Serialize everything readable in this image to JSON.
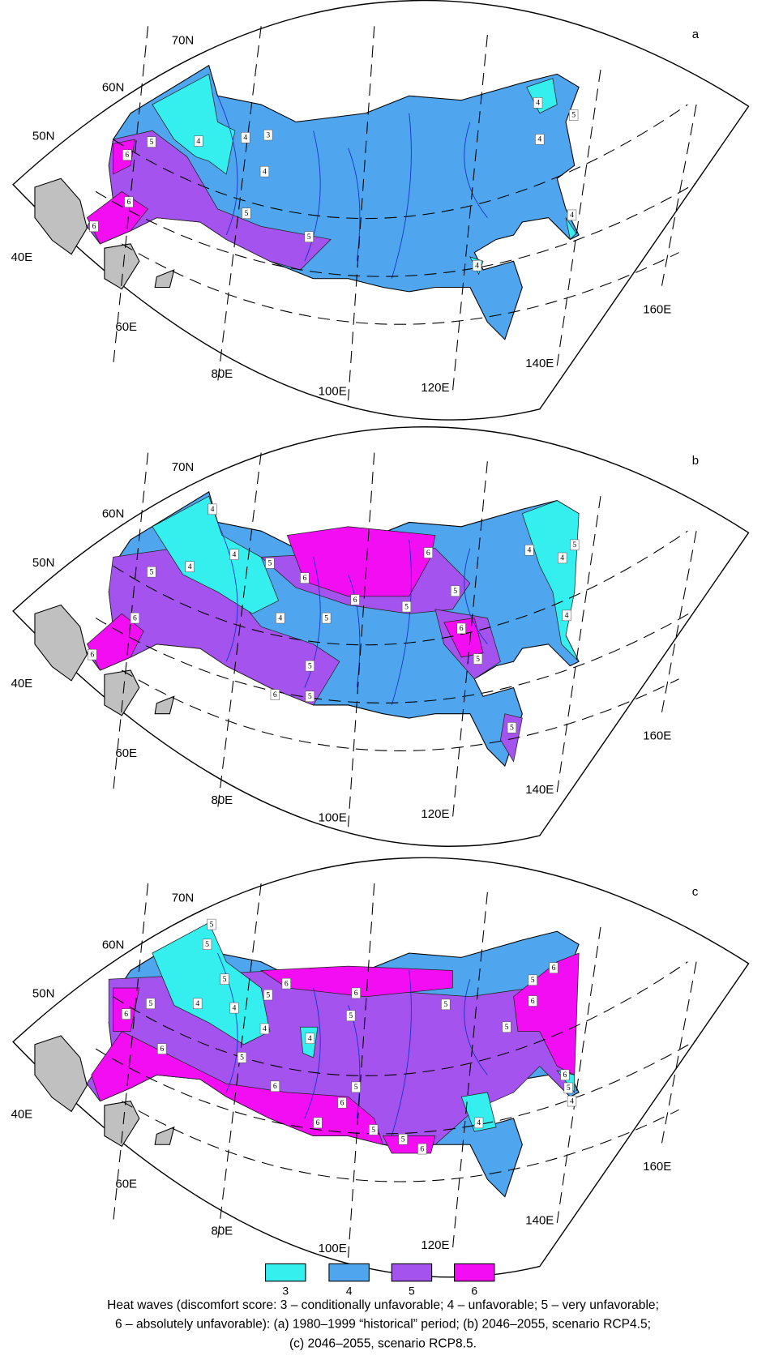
{
  "panels": [
    {
      "letter": "a",
      "scores": [
        4,
        4,
        3,
        5,
        6,
        4,
        6,
        6,
        5,
        5,
        4,
        4,
        5,
        4,
        4
      ]
    },
    {
      "letter": "b",
      "scores": [
        4,
        4,
        4,
        5,
        5,
        6,
        6,
        6,
        4,
        5,
        4,
        6,
        6,
        4,
        5,
        5,
        5,
        6,
        5,
        5,
        6,
        5,
        5,
        4
      ]
    },
    {
      "letter": "c",
      "scores": [
        5,
        5,
        5,
        5,
        4,
        4,
        6,
        6,
        5,
        5,
        5,
        6,
        6,
        5,
        5,
        6,
        4,
        4,
        5,
        6,
        6,
        5,
        6,
        5,
        6,
        5,
        6,
        4,
        6,
        5,
        4
      ]
    }
  ],
  "graticule_labels": [
    "70N",
    "60N",
    "50N",
    "40E",
    "60E",
    "80E",
    "100E",
    "120E",
    "140E",
    "160E"
  ],
  "legend": {
    "items": [
      {
        "label": 3,
        "color": "#35eeee"
      },
      {
        "label": 4,
        "color": "#4fa6ee"
      },
      {
        "label": 5,
        "color": "#a553ee"
      },
      {
        "label": 6,
        "color": "#f20df2"
      }
    ]
  },
  "caption": [
    "Heat waves (discomfort score: 3 – conditionally unfavorable; 4 – unfavorable; 5 – very unfavorable;",
    "6 – absolutely unfavorable): (a) 1980–1999 “historical” period; (b) 2046–2055, scenario RCP4.5;",
    "(c) 2046–2055, scenario RCP8.5."
  ]
}
